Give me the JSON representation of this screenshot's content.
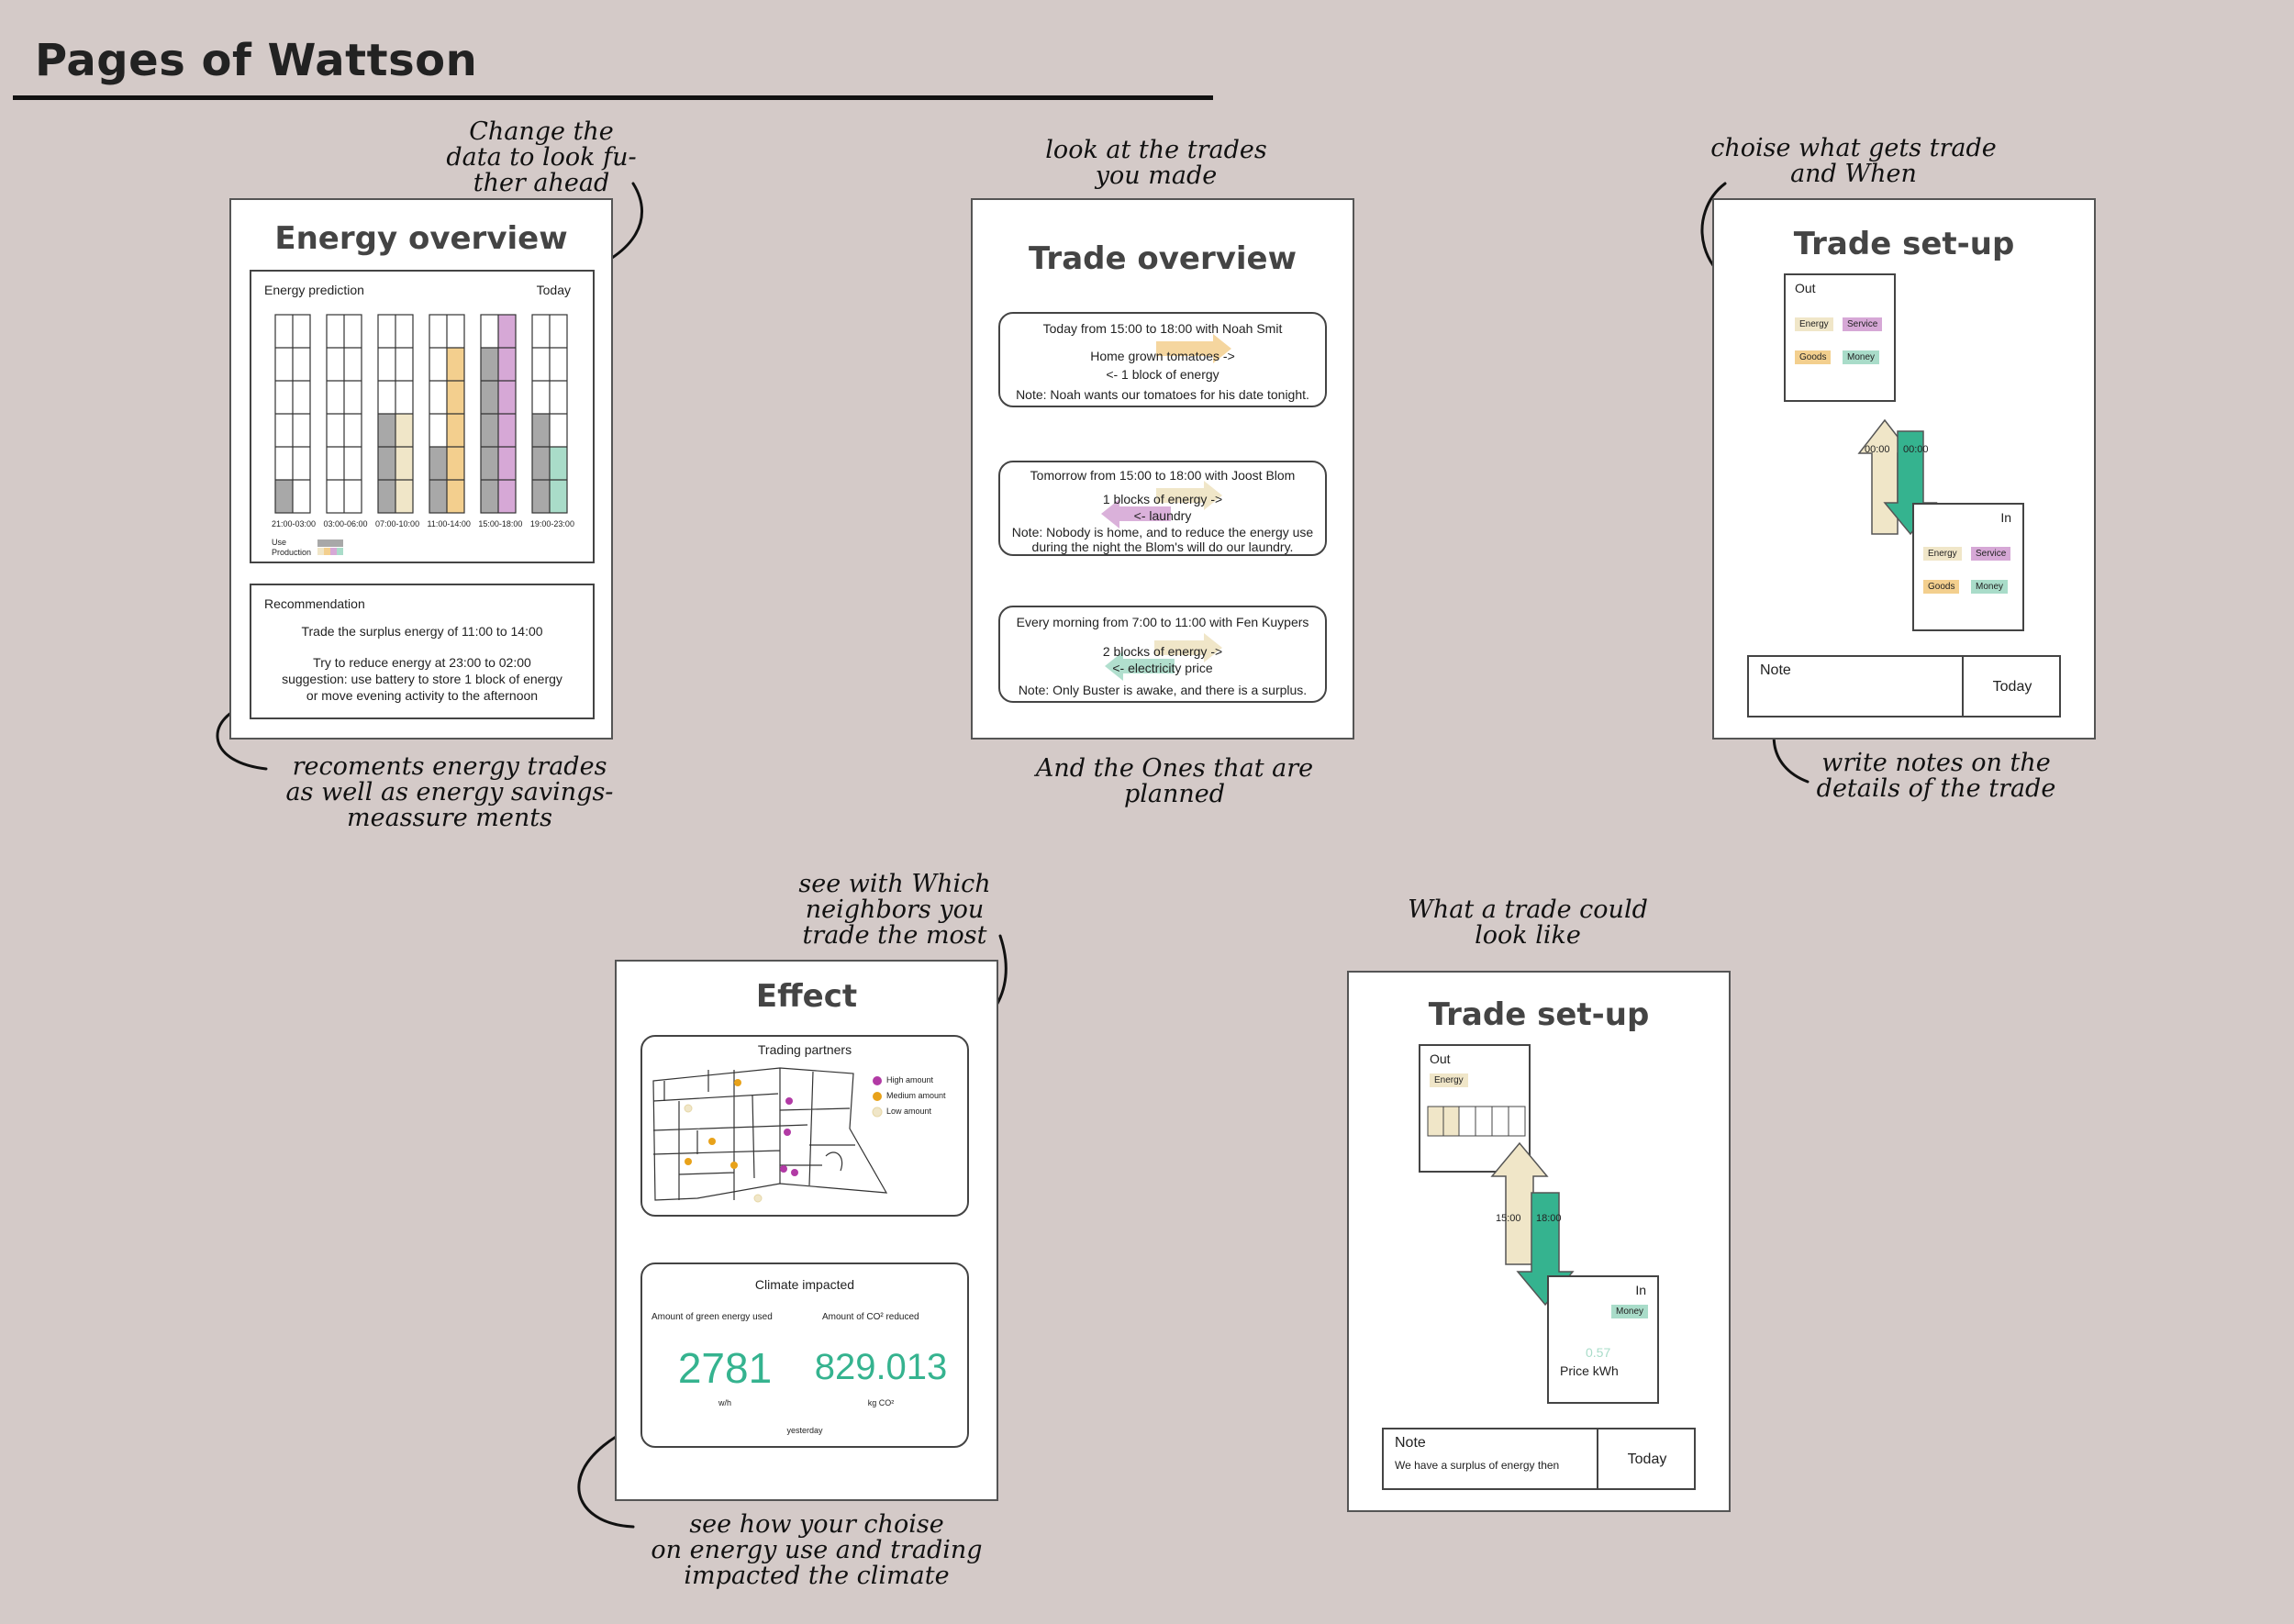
{
  "page_title": "Pages of Wattson",
  "annotations": {
    "energy_top": "Change the\ndata to look fu-\nther ahead",
    "energy_bottom": "recoments energy trades\nas well as energy savings-\nmeassure ments",
    "trade_top": "look at the trades\nyou made",
    "trade_bottom": "And the Ones that are\nplanned",
    "setup_top": "choise what gets trade\nand When",
    "setup_bottom": "write notes on the\ndetails of the trade",
    "effect_top": "see with Which\nneighbors you\ntrade the most",
    "effect_bottom": "see how your choise\non energy use and trading\nimpacted the climate",
    "example_top": "What a trade could\nlook like"
  },
  "energy_overview": {
    "title": "Energy overview",
    "panel_label": "Energy prediction",
    "panel_date": "Today",
    "time_labels": [
      "21:00-03:00",
      "03:00-06:00",
      "07:00-10:00",
      "11:00-14:00",
      "15:00-18:00",
      "19:00-23:00"
    ],
    "legend_use": "Use",
    "legend_production": "Production",
    "recommendation_label": "Recommendation",
    "rec_line1": "Trade the surplus energy of 11:00 to 14:00",
    "rec_line2": "Try to reduce energy at 23:00 to 02:00",
    "rec_line3": "suggestion: use battery to store 1 block of energy",
    "rec_line4": "or move evening activity to the afternoon"
  },
  "trade_overview": {
    "title": "Trade overview",
    "trades": [
      {
        "head": "Today from 15:00 to 18:00 with Noah Smit",
        "line1": "Home grown tomatoes ->",
        "line2": "<- 1 block of energy",
        "note1": "Note: Noah wants our tomatoes for his date tonight.",
        "note2": ""
      },
      {
        "head": "Tomorrow from 15:00 to 18:00 with Joost Blom",
        "line1": "1 blocks of energy ->",
        "line2": "<- laundry",
        "note1": "Note: Nobody is home, and to reduce the energy use",
        "note2": "during the night the Blom's will do our laundry."
      },
      {
        "head": "Every morning from 7:00 to 11:00 with Fen Kuypers",
        "line1": "2 blocks of energy ->",
        "line2": "<- electricity price",
        "note1": "Note: Only Buster is awake, and there is a surplus.",
        "note2": ""
      }
    ]
  },
  "trade_setup": {
    "title": "Trade set-up",
    "out_label": "Out",
    "in_label": "In",
    "tags": [
      "Energy",
      "Service",
      "Goods",
      "Money"
    ],
    "time_left": "00:00",
    "time_right": "00:00",
    "note_label": "Note",
    "note_date": "Today"
  },
  "effect": {
    "title": "Effect",
    "map_title": "Trading partners",
    "legend_high": "High amount",
    "legend_medium": "Medium amount",
    "legend_low": "Low amount",
    "climate_title": "Climate impacted",
    "green_label": "Amount of green energy used",
    "co2_label": "Amount of CO² reduced",
    "green_value": "2781",
    "green_unit": "w/h",
    "co2_value": "829.013",
    "co2_unit": "kg CO²",
    "period": "yesterday"
  },
  "trade_example": {
    "title": "Trade set-up",
    "out_label": "Out",
    "out_tag": "Energy",
    "in_label": "In",
    "in_tag": "Money",
    "time_left": "15:00",
    "time_right": "18:00",
    "price_value": "0.57",
    "price_label": "Price kWh",
    "note_label": "Note",
    "note_text": "We have a surplus of energy then",
    "note_date": "Today"
  },
  "colors": {
    "background": "#d4cac8",
    "use": "#a8a8a8",
    "energy": "#f0e6c8",
    "service": "#d6a8d6",
    "goods": "#f3cf8e",
    "money": "#a9dcc9",
    "teal": "#35b38f",
    "purple": "#b23aa5",
    "orange": "#e8a21a"
  }
}
